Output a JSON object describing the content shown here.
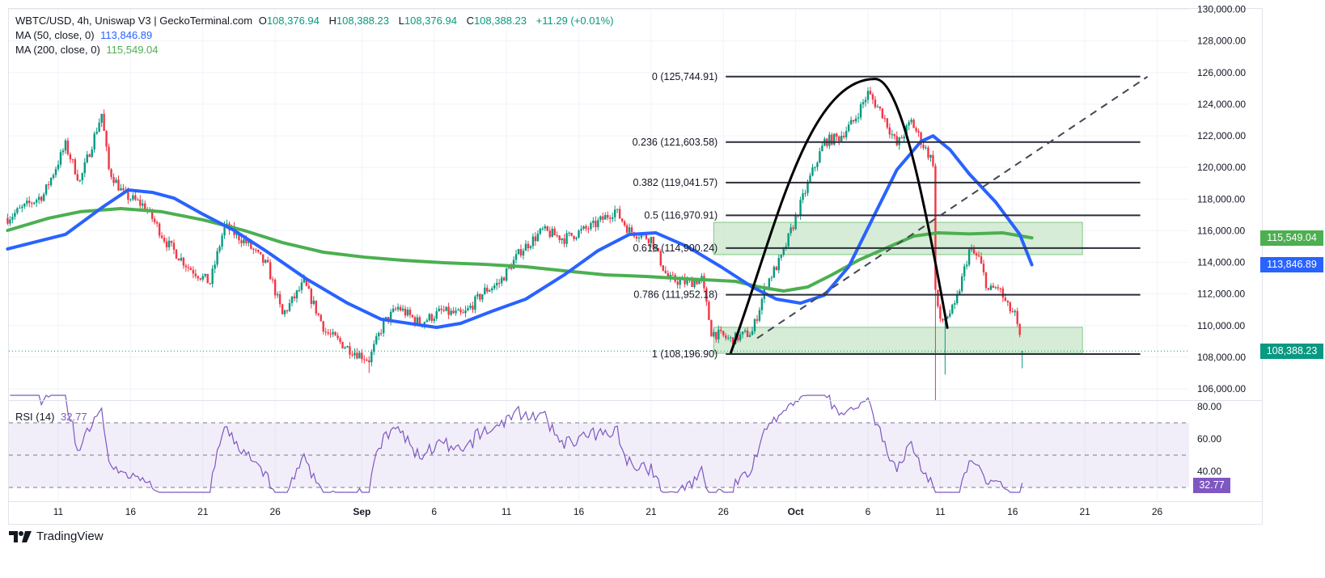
{
  "legend": {
    "title": "WBTC/USD, 4h, Uniswap V3 | GeckoTerminal.com",
    "open_label": "O",
    "open": "108,376.94",
    "high_label": "H",
    "high": "108,388.23",
    "low_label": "L",
    "low": "108,376.94",
    "close_label": "C",
    "close": "108,388.23",
    "change": "+11.29 (+0.01%)",
    "ma50_label": "MA (50, close, 0)",
    "ma50_value": "113,846.89",
    "ma200_label": "MA (200, close, 0)",
    "ma200_value": "115,549.04",
    "rsi_label": "RSI (14)",
    "rsi_value": "32.77"
  },
  "badges": {
    "ma200": "115,549.04",
    "ma50": "113,846.89",
    "price": "108,388.23",
    "rsi": "32.77"
  },
  "branding": {
    "logo_text": "TradingView"
  },
  "colors": {
    "up": "#089981",
    "down": "#f23645",
    "ma50": "#2962ff",
    "ma200": "#4caf50",
    "rsi": "#7e57c2",
    "zone": "#c8e6c9"
  },
  "chart_data": {
    "type": "candlestick",
    "interval": "4h",
    "price_axis": {
      "ticks": [
        "106,000.00",
        "108,000.00",
        "110,000.00",
        "112,000.00",
        "114,000.00",
        "116,000.00",
        "118,000.00",
        "120,000.00",
        "122,000.00",
        "124,000.00",
        "126,000.00",
        "128,000.00",
        "130,000.00"
      ],
      "values": [
        106000,
        108000,
        110000,
        112000,
        114000,
        116000,
        118000,
        120000,
        122000,
        124000,
        126000,
        128000,
        130000
      ]
    },
    "time_axis": {
      "ticks": [
        {
          "label": "11",
          "date": "08-11"
        },
        {
          "label": "16",
          "date": "08-16"
        },
        {
          "label": "21",
          "date": "08-21"
        },
        {
          "label": "26",
          "date": "08-26"
        },
        {
          "label": "Sep",
          "date": "09-01",
          "bold": true
        },
        {
          "label": "6",
          "date": "09-06"
        },
        {
          "label": "11",
          "date": "09-11"
        },
        {
          "label": "16",
          "date": "09-16"
        },
        {
          "label": "21",
          "date": "09-21"
        },
        {
          "label": "26",
          "date": "09-26"
        },
        {
          "label": "Oct",
          "date": "10-01",
          "bold": true
        },
        {
          "label": "6",
          "date": "10-06"
        },
        {
          "label": "11",
          "date": "10-11"
        },
        {
          "label": "16",
          "date": "10-16"
        },
        {
          "label": "21",
          "date": "10-21"
        },
        {
          "label": "26",
          "date": "10-26"
        }
      ]
    },
    "close_path": [
      [
        "08-07 12",
        116800
      ],
      [
        "08-10 00",
        118300
      ],
      [
        "08-11 12",
        121400
      ],
      [
        "08-12 12",
        119100
      ],
      [
        "08-14 00",
        123400
      ],
      [
        "08-14 12",
        119850
      ],
      [
        "08-15 12",
        118300
      ],
      [
        "08-17 00",
        117550
      ],
      [
        "08-18 12",
        115250
      ],
      [
        "08-20 00",
        113700
      ],
      [
        "08-21 12",
        112700
      ],
      [
        "08-22 12",
        116300
      ],
      [
        "08-24 00",
        115250
      ],
      [
        "08-25 12",
        113700
      ],
      [
        "08-26 12",
        110650
      ],
      [
        "08-28 00",
        112700
      ],
      [
        "08-29 12",
        109600
      ],
      [
        "08-31 00",
        108600
      ],
      [
        "09-01 12",
        107850
      ],
      [
        "09-02 12",
        110150
      ],
      [
        "09-03 12",
        111150
      ],
      [
        "09-05 00",
        110150
      ],
      [
        "09-06 12",
        110900
      ],
      [
        "09-08 00",
        110650
      ],
      [
        "09-09 12",
        112200
      ],
      [
        "09-10 12",
        112700
      ],
      [
        "09-12 00",
        114750
      ],
      [
        "09-13 12",
        116000
      ],
      [
        "09-15 00",
        115500
      ],
      [
        "09-17 00",
        116300
      ],
      [
        "09-18 12",
        117300
      ],
      [
        "09-19 12",
        116000
      ],
      [
        "09-21 00",
        115500
      ],
      [
        "09-22 04",
        112950
      ],
      [
        "09-23 12",
        112700
      ],
      [
        "09-24 12",
        112950
      ],
      [
        "09-25 04",
        109600
      ],
      [
        "09-26 12",
        109100
      ],
      [
        "09-28 00",
        109600
      ],
      [
        "09-29 00",
        112700
      ],
      [
        "09-30 00",
        114250
      ],
      [
        "10-01 00",
        116800
      ],
      [
        "10-02 00",
        119350
      ],
      [
        "10-03 00",
        121650
      ],
      [
        "10-04 00",
        121900
      ],
      [
        "10-05 00",
        122900
      ],
      [
        "10-06 00",
        124700
      ],
      [
        "10-07 00",
        123400
      ],
      [
        "10-08 00",
        121400
      ],
      [
        "10-09 00",
        122900
      ],
      [
        "10-09 20",
        121400
      ],
      [
        "10-10 12",
        120350
      ],
      [
        "10-10 16",
        112200
      ],
      [
        "10-11 00",
        110150
      ],
      [
        "10-12 00",
        111150
      ],
      [
        "10-13 00",
        114750
      ],
      [
        "10-13 16",
        114250
      ],
      [
        "10-14 08",
        112200
      ],
      [
        "10-15 00",
        112450
      ],
      [
        "10-15 16",
        111150
      ],
      [
        "10-16 04",
        110650
      ],
      [
        "10-16 16",
        108388.23
      ]
    ],
    "notable_lows": [
      [
        "10-10 16",
        104200
      ],
      [
        "10-11 08",
        106900
      ],
      [
        "09-01 12",
        107000
      ],
      [
        "10-16 16",
        107300
      ]
    ],
    "last_candle": {
      "open": 108376.94,
      "high": 108388.23,
      "low": 108376.94,
      "close": 108388.23
    },
    "ma50": [
      [
        "08-07 12",
        114845
      ],
      [
        "08-11 12",
        115765
      ],
      [
        "08-14 04",
        117555
      ],
      [
        "08-15 20",
        118575
      ],
      [
        "08-17 12",
        118425
      ],
      [
        "08-19 00",
        118065
      ],
      [
        "08-21 00",
        117045
      ],
      [
        "08-23 04",
        116020
      ],
      [
        "08-25 08",
        114740
      ],
      [
        "08-28 04",
        112950
      ],
      [
        "08-31 00",
        111420
      ],
      [
        "09-02 08",
        110400
      ],
      [
        "09-06 04",
        109885
      ],
      [
        "09-07 20",
        110140
      ],
      [
        "09-10 00",
        110910
      ],
      [
        "09-12 08",
        111675
      ],
      [
        "09-15 00",
        113210
      ],
      [
        "09-17 08",
        114740
      ],
      [
        "09-19 12",
        115765
      ],
      [
        "09-21 08",
        115865
      ],
      [
        "09-23 12",
        115000
      ],
      [
        "09-25 20",
        113720
      ],
      [
        "09-28 00",
        112440
      ],
      [
        "09-29 16",
        111675
      ],
      [
        "10-01 08",
        111420
      ],
      [
        "10-03 00",
        111930
      ],
      [
        "10-04 16",
        113720
      ],
      [
        "10-06 08",
        116790
      ],
      [
        "10-08 00",
        119855
      ],
      [
        "10-09 16",
        121645
      ],
      [
        "10-10 12",
        122000
      ],
      [
        "10-11 16",
        121130
      ],
      [
        "10-13 00",
        119600
      ],
      [
        "10-14 20",
        117810
      ],
      [
        "10-16 12",
        115765
      ],
      [
        "10-17 08",
        113846.89
      ]
    ],
    "ma200": [
      [
        "08-07 12",
        116020
      ],
      [
        "08-10 08",
        116790
      ],
      [
        "08-12 12",
        117200
      ],
      [
        "08-15 08",
        117400
      ],
      [
        "08-18 04",
        117200
      ],
      [
        "08-21 00",
        116690
      ],
      [
        "08-23 20",
        116020
      ],
      [
        "08-26 12",
        115250
      ],
      [
        "08-29 08",
        114640
      ],
      [
        "09-01 04",
        114330
      ],
      [
        "09-03 20",
        114130
      ],
      [
        "09-06 16",
        113975
      ],
      [
        "09-09 12",
        113870
      ],
      [
        "09-12 08",
        113720
      ],
      [
        "09-15 00",
        113465
      ],
      [
        "09-17 20",
        113210
      ],
      [
        "09-20 16",
        113105
      ],
      [
        "09-23 12",
        112950
      ],
      [
        "09-26 20",
        112800
      ],
      [
        "09-28 12",
        112440
      ],
      [
        "09-30 04",
        112185
      ],
      [
        "10-01 20",
        112440
      ],
      [
        "10-03 12",
        113210
      ],
      [
        "10-05 08",
        114130
      ],
      [
        "10-07 12",
        115000
      ],
      [
        "10-09 04",
        115660
      ],
      [
        "10-10 20",
        115865
      ],
      [
        "10-13 00",
        115800
      ],
      [
        "10-15 08",
        115865
      ],
      [
        "10-17 08",
        115549.04
      ]
    ],
    "fibonacci": {
      "levels": [
        {
          "ratio": "0",
          "price": 125744.91,
          "label": "0 (125,744.91)"
        },
        {
          "ratio": "0.236",
          "price": 121603.58,
          "label": "0.236 (121,603.58)"
        },
        {
          "ratio": "0.382",
          "price": 119041.57,
          "label": "0.382 (119,041.57)"
        },
        {
          "ratio": "0.5",
          "price": 116970.91,
          "label": "0.5 (116,970.91)"
        },
        {
          "ratio": "0.618",
          "price": 114900.24,
          "label": "0.618 (114,900.24)"
        },
        {
          "ratio": "0.786",
          "price": 111952.18,
          "label": "0.786 (111,952.18)"
        },
        {
          "ratio": "1",
          "price": 108196.9,
          "label": "1 (108,196.90)"
        }
      ],
      "from": "09-26 04",
      "to": "10-24 20"
    },
    "zones": [
      {
        "from": "09-25 08",
        "to": "10-20 20",
        "top": 116530,
        "bottom": 114490
      },
      {
        "from": "09-25 08",
        "to": "10-20 20",
        "top": 109890,
        "bottom": 108250
      }
    ],
    "trendline": {
      "from": [
        "09-28 08",
        109200
      ],
      "to": [
        "10-25 08",
        125744.91
      ]
    },
    "arc": {
      "start": [
        "09-26 12",
        108250
      ],
      "peak": [
        "10-06 12",
        125600
      ],
      "end": [
        "10-11 12",
        109800
      ]
    },
    "rsi": {
      "period": 14,
      "levels": [
        70,
        50,
        30
      ],
      "ticks": [
        "80.00",
        "60.00",
        "40.00"
      ],
      "tick_values": [
        80,
        60,
        40
      ],
      "last": 32.77
    }
  }
}
